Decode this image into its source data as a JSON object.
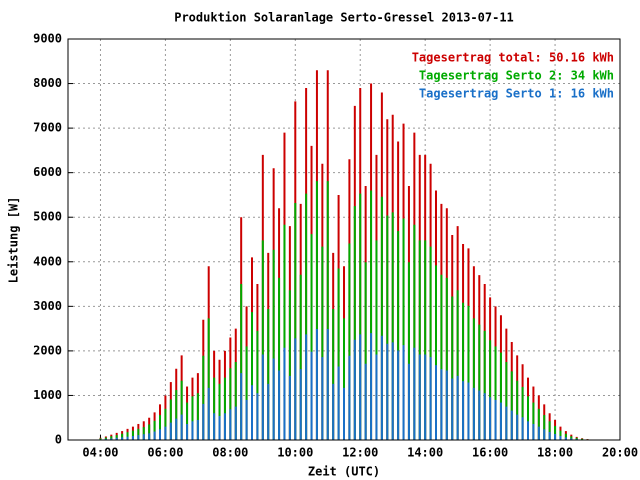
{
  "chart_data": {
    "type": "impulse",
    "title": "Produktion Solaranlage Serto-Gressel 2013-07-11",
    "xlabel": "Zeit (UTC)",
    "ylabel": "Leistung [W]",
    "x": [
      "04:00",
      "04:10",
      "04:20",
      "04:30",
      "04:40",
      "04:50",
      "05:00",
      "05:10",
      "05:20",
      "05:30",
      "05:40",
      "05:50",
      "06:00",
      "06:10",
      "06:20",
      "06:30",
      "06:40",
      "06:50",
      "07:00",
      "07:10",
      "07:20",
      "07:30",
      "07:40",
      "07:50",
      "08:00",
      "08:10",
      "08:20",
      "08:30",
      "08:40",
      "08:50",
      "09:00",
      "09:10",
      "09:20",
      "09:30",
      "09:40",
      "09:50",
      "10:00",
      "10:10",
      "10:20",
      "10:30",
      "10:40",
      "10:50",
      "11:00",
      "11:10",
      "11:20",
      "11:30",
      "11:40",
      "11:50",
      "12:00",
      "12:10",
      "12:20",
      "12:30",
      "12:40",
      "12:50",
      "13:00",
      "13:10",
      "13:20",
      "13:30",
      "13:40",
      "13:50",
      "14:00",
      "14:10",
      "14:20",
      "14:30",
      "14:40",
      "14:50",
      "15:00",
      "15:10",
      "15:20",
      "15:30",
      "15:40",
      "15:50",
      "16:00",
      "16:10",
      "16:20",
      "16:30",
      "16:40",
      "16:50",
      "17:00",
      "17:10",
      "17:20",
      "17:30",
      "17:40",
      "17:50",
      "18:00",
      "18:10",
      "18:20",
      "18:30",
      "18:40",
      "18:50",
      "19:00",
      "19:10"
    ],
    "series": [
      {
        "name": "Tagesertrag total: 50.16 kWh",
        "color": "#cc0000",
        "values": [
          50,
          80,
          120,
          160,
          200,
          250,
          300,
          360,
          420,
          500,
          620,
          800,
          1000,
          1300,
          1600,
          1900,
          1200,
          1400,
          1500,
          2700,
          3900,
          2000,
          1800,
          2000,
          2300,
          2500,
          5000,
          3000,
          4100,
          3500,
          6400,
          4200,
          6100,
          5200,
          6900,
          4800,
          7600,
          5300,
          7900,
          6600,
          8300,
          6200,
          8300,
          4200,
          5500,
          3900,
          6300,
          7500,
          7900,
          5700,
          8000,
          6400,
          7800,
          7200,
          7300,
          6700,
          7100,
          5700,
          6900,
          6400,
          6400,
          6200,
          5600,
          5300,
          5200,
          4600,
          4800,
          4400,
          4300,
          3900,
          3700,
          3500,
          3200,
          3000,
          2800,
          2500,
          2200,
          1900,
          1700,
          1400,
          1200,
          1000,
          800,
          600,
          450,
          300,
          200,
          120,
          70,
          40,
          20,
          10
        ]
      },
      {
        "name": "Tagesertrag Serto 2: 34 kWh",
        "color": "#00aa00",
        "values": [
          35,
          55,
          85,
          110,
          140,
          175,
          210,
          250,
          290,
          350,
          430,
          560,
          700,
          910,
          1120,
          1330,
          840,
          980,
          1050,
          1890,
          2730,
          1400,
          1260,
          1400,
          1610,
          1750,
          3500,
          2100,
          2870,
          2450,
          4480,
          2940,
          4270,
          3640,
          4830,
          3360,
          5320,
          3710,
          5530,
          4620,
          5810,
          4340,
          5810,
          2940,
          3850,
          2730,
          4410,
          5250,
          5530,
          3990,
          5600,
          4480,
          5460,
          5040,
          5110,
          4690,
          4970,
          3990,
          4830,
          4480,
          4480,
          4340,
          3920,
          3710,
          3640,
          3220,
          3360,
          3080,
          3010,
          2730,
          2590,
          2450,
          2240,
          2100,
          1960,
          1750,
          1540,
          1330,
          1190,
          980,
          840,
          700,
          560,
          420,
          315,
          210,
          140,
          84,
          49,
          28,
          14,
          7
        ]
      },
      {
        "name": "Tagesertrag Serto 1: 16 kWh",
        "color": "#1a70c8",
        "values": [
          15,
          25,
          35,
          50,
          60,
          75,
          90,
          110,
          130,
          150,
          190,
          240,
          300,
          390,
          480,
          570,
          360,
          420,
          450,
          810,
          1170,
          600,
          540,
          600,
          690,
          750,
          1500,
          900,
          1230,
          1050,
          1920,
          1260,
          1830,
          1560,
          2070,
          1440,
          2280,
          1590,
          2370,
          1980,
          2490,
          1860,
          2490,
          1260,
          1650,
          1170,
          1890,
          2250,
          2370,
          1710,
          2400,
          1920,
          2340,
          2160,
          2190,
          2010,
          2130,
          1710,
          2070,
          1920,
          1920,
          1860,
          1680,
          1590,
          1560,
          1380,
          1440,
          1320,
          1290,
          1170,
          1110,
          1050,
          960,
          900,
          840,
          750,
          660,
          570,
          510,
          420,
          360,
          300,
          240,
          180,
          135,
          90,
          60,
          36,
          21,
          12,
          6,
          3
        ]
      }
    ],
    "xlim": [
      "03:00",
      "20:00"
    ],
    "xticks": [
      "04:00",
      "06:00",
      "08:00",
      "10:00",
      "12:00",
      "14:00",
      "16:00",
      "18:00",
      "20:00"
    ],
    "ylim": [
      0,
      9000
    ],
    "yticks": [
      0,
      1000,
      2000,
      3000,
      4000,
      5000,
      6000,
      7000,
      8000,
      9000
    ],
    "grid": true,
    "legend": "upper right"
  }
}
